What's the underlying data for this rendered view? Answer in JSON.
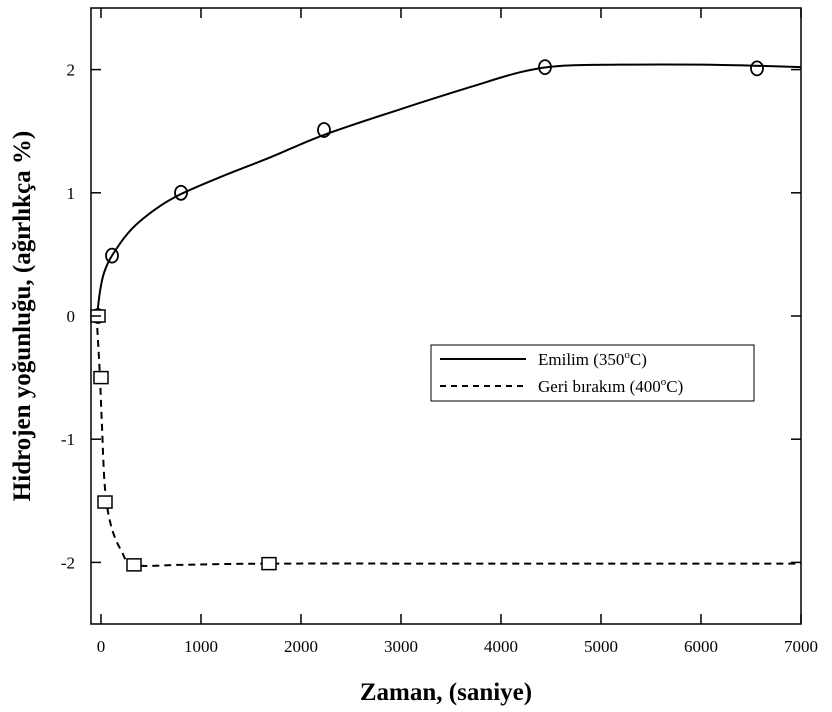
{
  "chart_data": {
    "type": "line",
    "xlabel": "Zaman, (saniye)",
    "ylabel": "Hidrojen yoğunluğu, (ağırlıkça %)",
    "xlim": [
      -100,
      7000
    ],
    "ylim": [
      -2.5,
      2.5
    ],
    "x_ticks": [
      0,
      1000,
      2000,
      3000,
      4000,
      5000,
      6000,
      7000
    ],
    "y_ticks": [
      2,
      1,
      0,
      -1,
      -2
    ],
    "x_tick_labels": [
      "0",
      "1000",
      "2000",
      "3000",
      "4000",
      "5000",
      "6000",
      "7000"
    ],
    "y_tick_labels": [
      "2",
      "1",
      "0",
      "-1",
      "-2"
    ],
    "grid": false,
    "legend_position": "middle-right",
    "series": [
      {
        "name": "Emilim (350",
        "name_sup": "o",
        "name_tail": "C)",
        "line_style": "solid",
        "marker": "circle",
        "color": "#000000",
        "points": [
          {
            "x": -30,
            "y": 0.0
          },
          {
            "x": 110,
            "y": 0.49
          },
          {
            "x": 800,
            "y": 1.0
          },
          {
            "x": 2230,
            "y": 1.51
          },
          {
            "x": 4440,
            "y": 2.02
          },
          {
            "x": 6560,
            "y": 2.01
          }
        ],
        "curve": [
          {
            "x": -40,
            "y": 0.0
          },
          {
            "x": -10,
            "y": 0.2
          },
          {
            "x": 30,
            "y": 0.35
          },
          {
            "x": 110,
            "y": 0.49
          },
          {
            "x": 300,
            "y": 0.7
          },
          {
            "x": 550,
            "y": 0.87
          },
          {
            "x": 800,
            "y": 0.99
          },
          {
            "x": 1200,
            "y": 1.13
          },
          {
            "x": 1700,
            "y": 1.29
          },
          {
            "x": 2230,
            "y": 1.47
          },
          {
            "x": 3000,
            "y": 1.68
          },
          {
            "x": 3700,
            "y": 1.86
          },
          {
            "x": 4200,
            "y": 1.98
          },
          {
            "x": 4600,
            "y": 2.03
          },
          {
            "x": 5200,
            "y": 2.04
          },
          {
            "x": 6000,
            "y": 2.04
          },
          {
            "x": 6600,
            "y": 2.03
          },
          {
            "x": 7000,
            "y": 2.02
          }
        ]
      },
      {
        "name": "Geri bırakım (400",
        "name_sup": "o",
        "name_tail": "C)",
        "line_style": "dashed",
        "marker": "square",
        "color": "#000000",
        "points": [
          {
            "x": -30,
            "y": 0.0
          },
          {
            "x": 0,
            "y": -0.5
          },
          {
            "x": 40,
            "y": -1.51
          },
          {
            "x": 330,
            "y": -2.02
          },
          {
            "x": 1680,
            "y": -2.01
          }
        ],
        "curve": [
          {
            "x": -45,
            "y": 0.0
          },
          {
            "x": -30,
            "y": -0.2
          },
          {
            "x": -10,
            "y": -0.5
          },
          {
            "x": 10,
            "y": -0.9
          },
          {
            "x": 40,
            "y": -1.4
          },
          {
            "x": 100,
            "y": -1.7
          },
          {
            "x": 200,
            "y": -1.9
          },
          {
            "x": 330,
            "y": -2.02
          },
          {
            "x": 800,
            "y": -2.02
          },
          {
            "x": 1680,
            "y": -2.01
          },
          {
            "x": 4000,
            "y": -2.01
          },
          {
            "x": 7000,
            "y": -2.01
          }
        ]
      }
    ]
  }
}
